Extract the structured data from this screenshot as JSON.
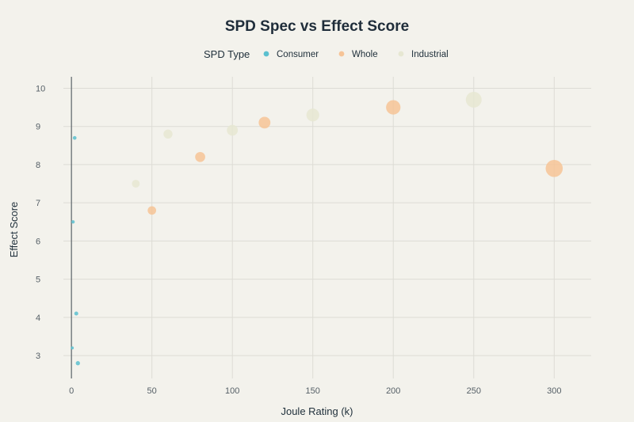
{
  "chart_data": {
    "type": "scatter",
    "title": "SPD Spec vs Effect Score",
    "xlabel": "Joule Rating (k)",
    "ylabel": "Effect Score",
    "xlim": [
      -5,
      323
    ],
    "ylim": [
      2.4,
      10.3
    ],
    "xticks": [
      0,
      50,
      100,
      150,
      200,
      250,
      300
    ],
    "yticks": [
      3,
      4,
      5,
      6,
      7,
      8,
      9,
      10
    ],
    "legend_title": "SPD Type",
    "series": [
      {
        "name": "Consumer",
        "color": "#5bc0cf",
        "x": [
          2,
          1,
          3,
          4,
          0.5
        ],
        "y": [
          8.7,
          6.5,
          4.1,
          2.8,
          3.2
        ]
      },
      {
        "name": "Whole",
        "color": "#f6c497",
        "x": [
          50,
          80,
          120,
          200,
          300
        ],
        "y": [
          6.8,
          8.2,
          9.1,
          9.5,
          7.9
        ]
      },
      {
        "name": "Industrial",
        "color": "#e6e7d2",
        "x": [
          40,
          60,
          100,
          150,
          250
        ],
        "y": [
          7.5,
          8.8,
          8.9,
          9.3,
          9.7
        ]
      }
    ]
  }
}
